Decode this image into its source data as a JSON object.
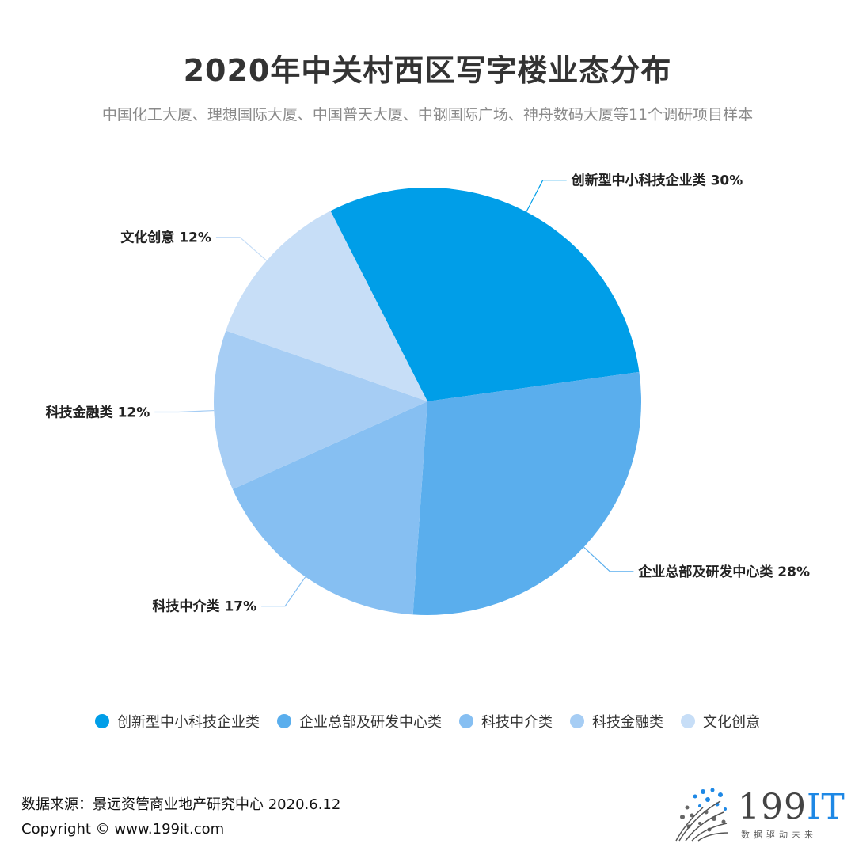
{
  "header": {
    "title": "2020年中关村西区写字楼业态分布",
    "subtitle": "中国化工大厦、理想国际大厦、中国普天大厦、中钢国际广场、神舟数码大厦等11个调研项目样本"
  },
  "chart_data": {
    "type": "pie",
    "categories": [
      "创新型中小科技企业类",
      "企业总部及研发中心类",
      "科技中介类",
      "科技金融类",
      "文化创意"
    ],
    "values": [
      30,
      28,
      17,
      12,
      12
    ],
    "labels": [
      "创新型中小科技企业类 30%",
      "企业总部及研发中心类 28%",
      "科技中介类 17%",
      "科技金融类 12%",
      "文化创意 12%"
    ],
    "colors": [
      "#009ee8",
      "#5aaeed",
      "#86bff2",
      "#a6cdf4",
      "#c7def7"
    ],
    "legend_position": "bottom"
  },
  "legend": {
    "items": [
      "创新型中小科技企业类",
      "企业总部及研发中心类",
      "科技中介类",
      "科技金融类",
      "文化创意"
    ]
  },
  "footer": {
    "source": "数据来源：景远资管商业地产研究中心 2020.6.12",
    "copyright": "Copyright ©  www.199it.com"
  },
  "logo": {
    "text_main": "199",
    "text_it": "IT",
    "tagline": "数据驱动未来"
  }
}
